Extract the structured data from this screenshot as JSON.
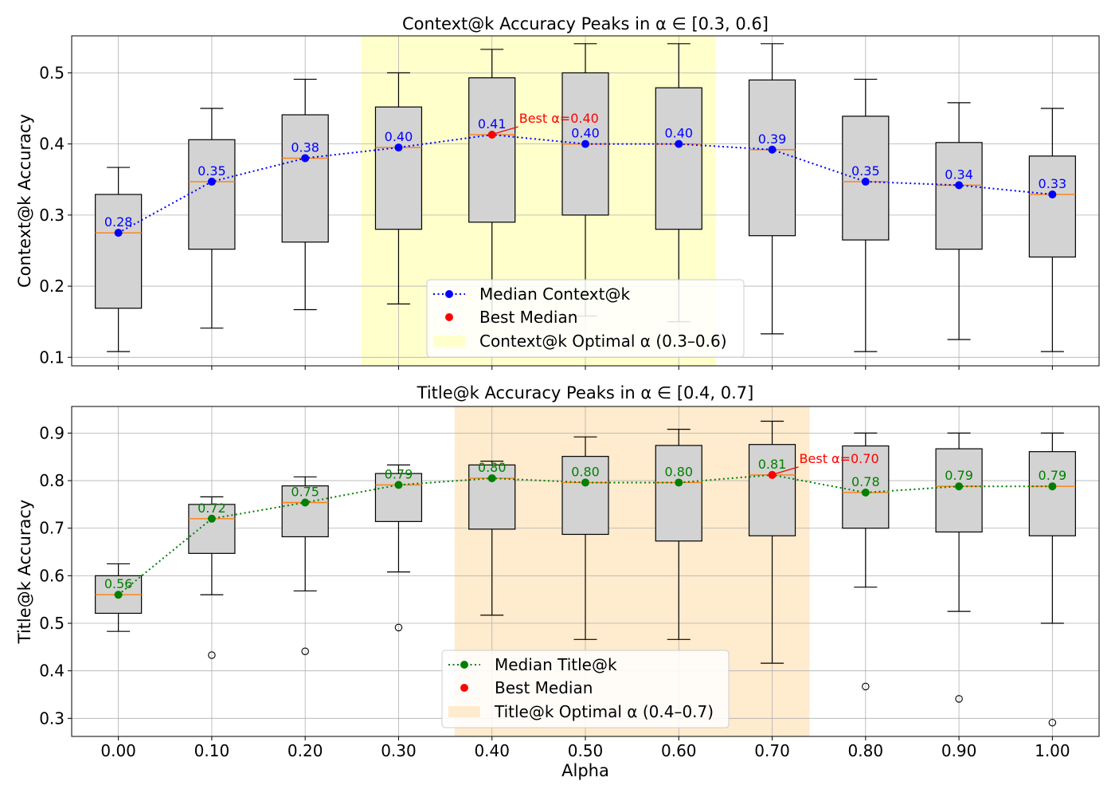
{
  "chart_data": [
    {
      "type": "box",
      "title": "Context@k Accuracy Peaks in α ∈ [0.3, 0.6]",
      "xlabel": "",
      "ylabel": "Context@k Accuracy",
      "categories": [
        "0.00",
        "0.10",
        "0.20",
        "0.30",
        "0.40",
        "0.50",
        "0.60",
        "0.70",
        "0.80",
        "0.90",
        "1.00"
      ],
      "x": [
        0.0,
        0.1,
        0.2,
        0.3,
        0.4,
        0.5,
        0.6,
        0.7,
        0.8,
        0.9,
        1.0
      ],
      "ylim": [
        0.088,
        0.552
      ],
      "yticks": [
        0.1,
        0.2,
        0.3,
        0.4,
        0.5
      ],
      "ytick_labels": [
        "0.1",
        "0.2",
        "0.3",
        "0.4",
        "0.5"
      ],
      "show_xticklabels": false,
      "grid": true,
      "boxes": [
        {
          "whislo": 0.108,
          "q1": 0.169,
          "med": 0.275,
          "q3": 0.329,
          "whishi": 0.367,
          "fliers": []
        },
        {
          "whislo": 0.141,
          "q1": 0.252,
          "med": 0.347,
          "q3": 0.406,
          "whishi": 0.45,
          "fliers": []
        },
        {
          "whislo": 0.167,
          "q1": 0.262,
          "med": 0.38,
          "q3": 0.441,
          "whishi": 0.491,
          "fliers": []
        },
        {
          "whislo": 0.175,
          "q1": 0.28,
          "med": 0.395,
          "q3": 0.452,
          "whishi": 0.5,
          "fliers": []
        },
        {
          "whislo": 0.15,
          "q1": 0.29,
          "med": 0.413,
          "q3": 0.493,
          "whishi": 0.533,
          "fliers": []
        },
        {
          "whislo": 0.158,
          "q1": 0.3,
          "med": 0.4,
          "q3": 0.5,
          "whishi": 0.541,
          "fliers": []
        },
        {
          "whislo": 0.15,
          "q1": 0.28,
          "med": 0.4,
          "q3": 0.479,
          "whishi": 0.541,
          "fliers": []
        },
        {
          "whislo": 0.133,
          "q1": 0.271,
          "med": 0.392,
          "q3": 0.49,
          "whishi": 0.541,
          "fliers": []
        },
        {
          "whislo": 0.108,
          "q1": 0.265,
          "med": 0.347,
          "q3": 0.439,
          "whishi": 0.491,
          "fliers": []
        },
        {
          "whislo": 0.125,
          "q1": 0.252,
          "med": 0.342,
          "q3": 0.402,
          "whishi": 0.458,
          "fliers": []
        },
        {
          "whislo": 0.108,
          "q1": 0.241,
          "med": 0.329,
          "q3": 0.383,
          "whishi": 0.45,
          "fliers": []
        }
      ],
      "median_series": {
        "name": "Median Context@k",
        "color": "#0000ff",
        "values": [
          0.275,
          0.347,
          0.38,
          0.395,
          0.413,
          0.4,
          0.4,
          0.392,
          0.347,
          0.342,
          0.329
        ],
        "labels": [
          "0.28",
          "0.35",
          "0.38",
          "0.40",
          "0.41",
          "0.40",
          "0.40",
          "0.39",
          "0.35",
          "0.34",
          "0.33"
        ]
      },
      "best": {
        "x": 0.4,
        "y": 0.413,
        "label": "Best α=0.40",
        "color": "#ff0000"
      },
      "band": {
        "x0": 0.26,
        "x1": 0.64,
        "color": "#ffffcc",
        "label": "Context@k Optimal α (0.3–0.6)"
      },
      "legend": {
        "placement": "lower-center",
        "entries": [
          "Median Context@k",
          "Best Median",
          "Context@k Optimal α (0.3–0.6)"
        ]
      }
    },
    {
      "type": "box",
      "title": "Title@k Accuracy Peaks in α ∈ [0.4, 0.7]",
      "xlabel": "Alpha",
      "ylabel": "Title@k Accuracy",
      "categories": [
        "0.00",
        "0.10",
        "0.20",
        "0.30",
        "0.40",
        "0.50",
        "0.60",
        "0.70",
        "0.80",
        "0.90",
        "1.00"
      ],
      "x": [
        0.0,
        0.1,
        0.2,
        0.3,
        0.4,
        0.5,
        0.6,
        0.7,
        0.8,
        0.9,
        1.0
      ],
      "ylim": [
        0.262,
        0.956
      ],
      "yticks": [
        0.3,
        0.4,
        0.5,
        0.6,
        0.7,
        0.8,
        0.9
      ],
      "ytick_labels": [
        "0.3",
        "0.4",
        "0.5",
        "0.6",
        "0.7",
        "0.8",
        "0.9"
      ],
      "show_xticklabels": true,
      "grid": true,
      "boxes": [
        {
          "whislo": 0.483,
          "q1": 0.521,
          "med": 0.56,
          "q3": 0.6,
          "whishi": 0.625,
          "fliers": []
        },
        {
          "whislo": 0.56,
          "q1": 0.647,
          "med": 0.72,
          "q3": 0.75,
          "whishi": 0.766,
          "fliers": [
            0.433
          ]
        },
        {
          "whislo": 0.568,
          "q1": 0.682,
          "med": 0.754,
          "q3": 0.789,
          "whishi": 0.808,
          "fliers": [
            0.441
          ]
        },
        {
          "whislo": 0.608,
          "q1": 0.714,
          "med": 0.791,
          "q3": 0.815,
          "whishi": 0.833,
          "fliers": [
            0.491
          ]
        },
        {
          "whislo": 0.517,
          "q1": 0.698,
          "med": 0.805,
          "q3": 0.833,
          "whishi": 0.841,
          "fliers": []
        },
        {
          "whislo": 0.466,
          "q1": 0.687,
          "med": 0.796,
          "q3": 0.851,
          "whishi": 0.892,
          "fliers": []
        },
        {
          "whislo": 0.466,
          "q1": 0.673,
          "med": 0.796,
          "q3": 0.874,
          "whishi": 0.908,
          "fliers": []
        },
        {
          "whislo": 0.416,
          "q1": 0.684,
          "med": 0.812,
          "q3": 0.876,
          "whishi": 0.925,
          "fliers": []
        },
        {
          "whislo": 0.576,
          "q1": 0.7,
          "med": 0.775,
          "q3": 0.873,
          "whishi": 0.9,
          "fliers": [
            0.367
          ]
        },
        {
          "whislo": 0.525,
          "q1": 0.692,
          "med": 0.788,
          "q3": 0.867,
          "whishi": 0.9,
          "fliers": [
            0.341
          ]
        },
        {
          "whislo": 0.5,
          "q1": 0.684,
          "med": 0.788,
          "q3": 0.861,
          "whishi": 0.9,
          "fliers": [
            0.291
          ]
        }
      ],
      "median_series": {
        "name": "Median Title@k",
        "color": "#008000",
        "values": [
          0.56,
          0.72,
          0.754,
          0.791,
          0.805,
          0.796,
          0.796,
          0.812,
          0.775,
          0.788,
          0.788
        ],
        "labels": [
          "0.56",
          "0.72",
          "0.75",
          "0.79",
          "0.80",
          "0.80",
          "0.80",
          "0.81",
          "0.78",
          "0.79",
          "0.79"
        ]
      },
      "best": {
        "x": 0.7,
        "y": 0.812,
        "label": "Best α=0.70",
        "color": "#ff0000"
      },
      "band": {
        "x0": 0.36,
        "x1": 0.74,
        "color": "#ffebcd",
        "label": "Title@k Optimal α (0.4–0.7)"
      },
      "legend": {
        "placement": "lower-center",
        "entries": [
          "Median Title@k",
          "Best Median",
          "Title@k Optimal α (0.4–0.7)"
        ]
      }
    }
  ],
  "colors": {
    "box_fill": "#d3d3d3",
    "median_line": "#ff7f0e",
    "grid": "#b0b0b0",
    "best": "#ff0000"
  }
}
